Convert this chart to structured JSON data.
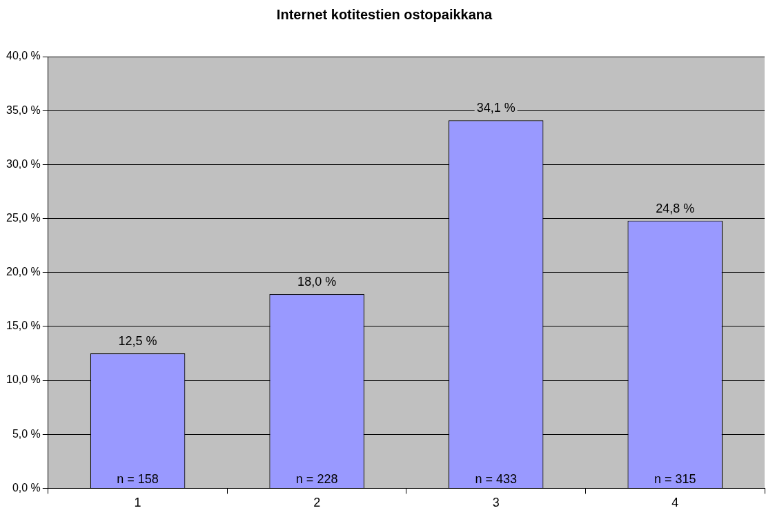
{
  "chart_data": {
    "type": "bar",
    "title": "Internet kotitestien ostopaikkana",
    "categories": [
      "1",
      "2",
      "3",
      "4"
    ],
    "values": [
      12.5,
      18.0,
      34.1,
      24.8
    ],
    "color": "#9999ff",
    "value_labels": [
      "12,5 %",
      "18,0 %",
      "34,1 %",
      "24,8 %"
    ],
    "annotations": [
      {
        "text": "n = 158",
        "x": "1",
        "y": 0
      },
      {
        "text": "n = 228",
        "x": "2",
        "y": 0
      },
      {
        "text": "n = 433",
        "x": "3",
        "y": 0
      },
      {
        "text": "n = 315",
        "x": "4",
        "y": 0
      }
    ],
    "ylim": [
      0,
      40
    ],
    "yticks": [
      {
        "value": 0,
        "label": "0,0 %"
      },
      {
        "value": 5,
        "label": "5,0 %"
      },
      {
        "value": 10,
        "label": "10,0 %"
      },
      {
        "value": 15,
        "label": "15,0 %"
      },
      {
        "value": 20,
        "label": "20,0 %"
      },
      {
        "value": 25,
        "label": "25,0 %"
      },
      {
        "value": 30,
        "label": "30,0 %"
      },
      {
        "value": 35,
        "label": "35,0 %"
      },
      {
        "value": 40,
        "label": "40,0 %"
      }
    ],
    "grid": "y"
  }
}
